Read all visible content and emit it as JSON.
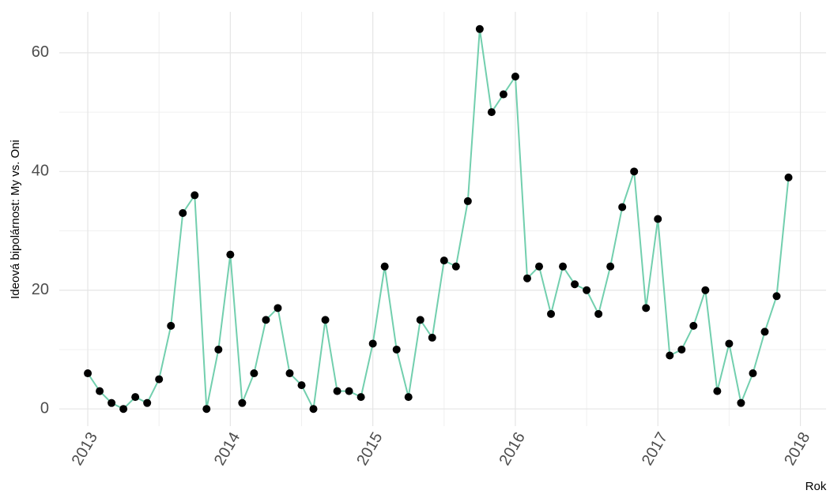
{
  "chart_data": {
    "type": "line",
    "xlabel": "Rok",
    "ylabel": "Ideová bipolárnost: My vs. Oni",
    "x": [
      "2013-01",
      "2013-02",
      "2013-03",
      "2013-04",
      "2013-05",
      "2013-06",
      "2013-07",
      "2013-08",
      "2013-09",
      "2013-10",
      "2013-11",
      "2013-12",
      "2014-01",
      "2014-02",
      "2014-03",
      "2014-04",
      "2014-05",
      "2014-06",
      "2014-07",
      "2014-08",
      "2014-09",
      "2014-10",
      "2014-11",
      "2014-12",
      "2015-01",
      "2015-02",
      "2015-03",
      "2015-04",
      "2015-05",
      "2015-06",
      "2015-07",
      "2015-08",
      "2015-09",
      "2015-10",
      "2015-11",
      "2015-12",
      "2016-01",
      "2016-02",
      "2016-03",
      "2016-04",
      "2016-05",
      "2016-06",
      "2016-07",
      "2016-08",
      "2016-09",
      "2016-10",
      "2016-11",
      "2016-12",
      "2017-01",
      "2017-02",
      "2017-03",
      "2017-04",
      "2017-05",
      "2017-06",
      "2017-07",
      "2017-08",
      "2017-09",
      "2017-10",
      "2017-11",
      "2017-12"
    ],
    "series": [
      {
        "color": "#72cfae",
        "marker_color": "#000000",
        "values": [
          6,
          3,
          1,
          0,
          2,
          1,
          5,
          14,
          33,
          36,
          0,
          10,
          26,
          1,
          6,
          15,
          17,
          6,
          4,
          0,
          15,
          3,
          3,
          2,
          11,
          24,
          10,
          2,
          15,
          12,
          25,
          24,
          35,
          64,
          50,
          53,
          56,
          22,
          24,
          16,
          24,
          21,
          20,
          16,
          24,
          34,
          40,
          17,
          32,
          9,
          10,
          14,
          20,
          3,
          11,
          1,
          6,
          13,
          19,
          39
        ]
      }
    ],
    "xlim": [
      2012.8,
      2018.18
    ],
    "xticks": [
      2013,
      2014,
      2015,
      2016,
      2017,
      2018
    ],
    "ylim": [
      -2.9,
      66.9
    ],
    "yticks": [
      0,
      20,
      40,
      60
    ],
    "grid": true
  }
}
